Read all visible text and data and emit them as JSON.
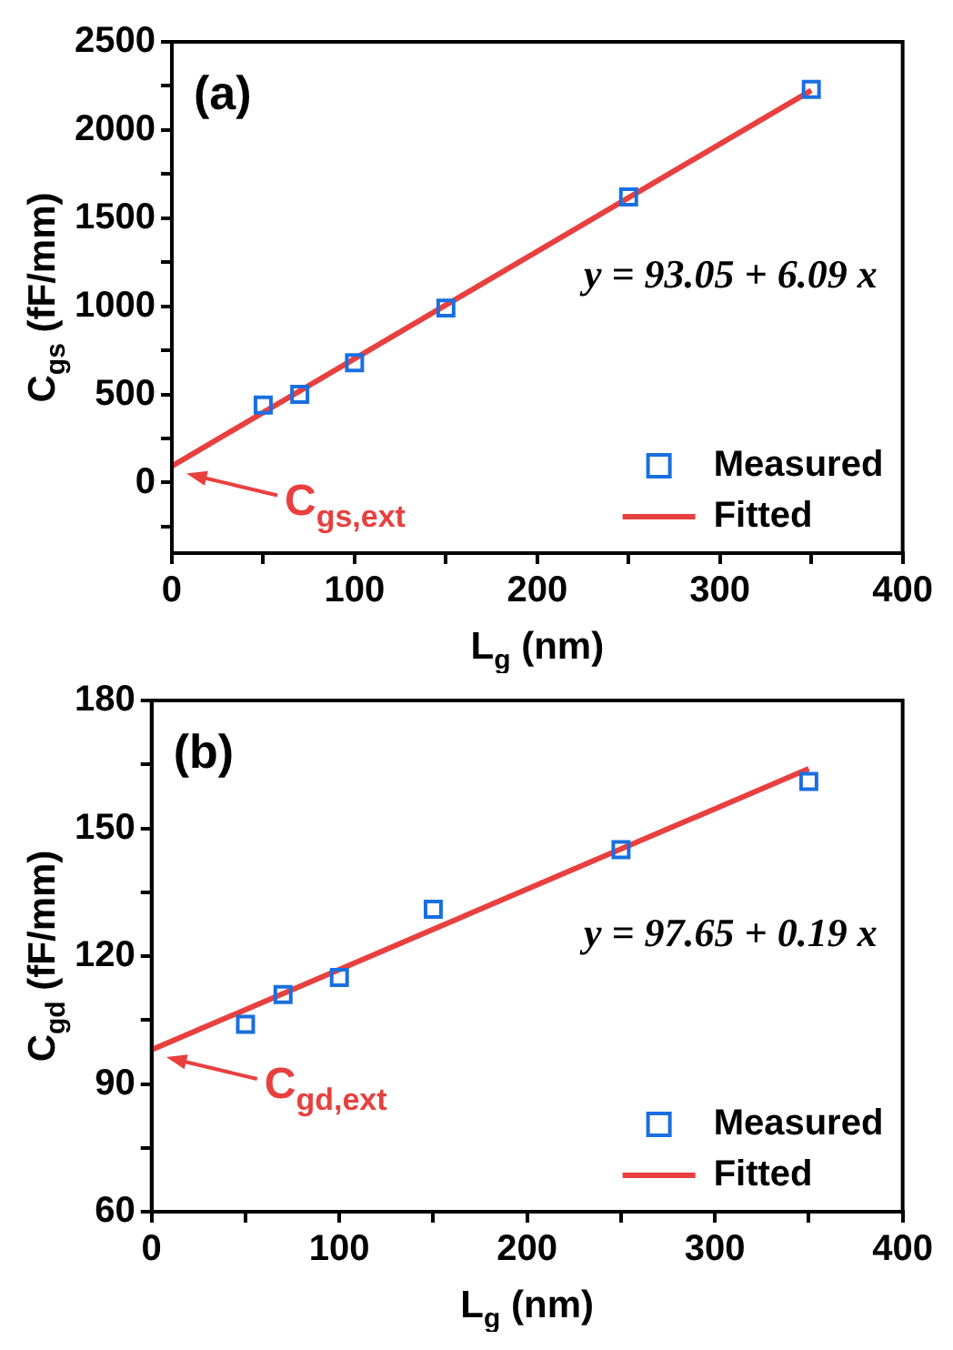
{
  "chart_data": [
    {
      "type": "scatter",
      "xlabel": "L$_{g}$ (nm)",
      "ylabel": "C$_{gs}$ (fF/mm)",
      "xlim": [
        0,
        400
      ],
      "xticks": [
        0,
        {
          "value": 50,
          "label": null
        },
        100,
        {
          "value": 150,
          "label": null
        },
        200,
        {
          "value": 250,
          "label": null
        },
        300,
        {
          "value": 350,
          "label": null
        },
        400
      ],
      "ylim": [
        -400,
        2500
      ],
      "yticks": [
        {
          "value": -250,
          "label": null
        },
        0,
        {
          "value": 250,
          "label": null
        },
        500,
        {
          "value": 750,
          "label": null
        },
        1000,
        {
          "value": 1250,
          "label": null
        },
        1500,
        {
          "value": 1750,
          "label": null
        },
        2000,
        {
          "value": 2250,
          "label": null
        },
        2500
      ],
      "grid": false,
      "legend": "bottom right",
      "series": [
        {
          "name": "Measured",
          "marker": "square",
          "color": "#1a6fe0",
          "x": [
            50,
            70,
            100,
            150,
            250,
            350
          ],
          "values": [
            440,
            500,
            680,
            990,
            1620,
            2230
          ]
        },
        {
          "name": "Fitted",
          "type": "line",
          "marker": "none",
          "color": "#e8403f",
          "x": [
            0,
            350
          ],
          "values": [
            93,
            2225
          ]
        }
      ],
      "annotations": [
        "(a)",
        "y = 93.05 + 6.09 x",
        {
          "text": "C$_{gs,ext}$",
          "x": 0,
          "y": 93
        }
      ]
    },
    {
      "type": "scatter",
      "xlabel": "L$_{g}$ (nm)",
      "ylabel": "C$_{gd}$ (fF/mm)",
      "xlim": [
        0,
        400
      ],
      "xticks": [
        0,
        {
          "value": 50,
          "label": null
        },
        100,
        {
          "value": 150,
          "label": null
        },
        200,
        {
          "value": 250,
          "label": null
        },
        300,
        {
          "value": 350,
          "label": null
        },
        400
      ],
      "ylim": [
        60,
        180
      ],
      "yticks": [
        60,
        {
          "value": 75,
          "label": null
        },
        90,
        {
          "value": 105,
          "label": null
        },
        120,
        {
          "value": 135,
          "label": null
        },
        150,
        {
          "value": 165,
          "label": null
        },
        180
      ],
      "grid": false,
      "legend": "bottom right",
      "series": [
        {
          "name": "Measured",
          "marker": "square",
          "color": "#1a6fe0",
          "x": [
            50,
            70,
            100,
            150,
            250,
            350
          ],
          "values": [
            104,
            111,
            115,
            131,
            145,
            161
          ]
        },
        {
          "name": "Fitted",
          "type": "line",
          "marker": "none",
          "color": "#e8403f",
          "x": [
            0,
            350
          ],
          "values": [
            98,
            164
          ]
        }
      ],
      "annotations": [
        "(b)",
        "y = 97.65 + 0.19 x",
        {
          "text": "C$_{gd,ext}$",
          "x": 0,
          "y": 98
        }
      ]
    }
  ]
}
